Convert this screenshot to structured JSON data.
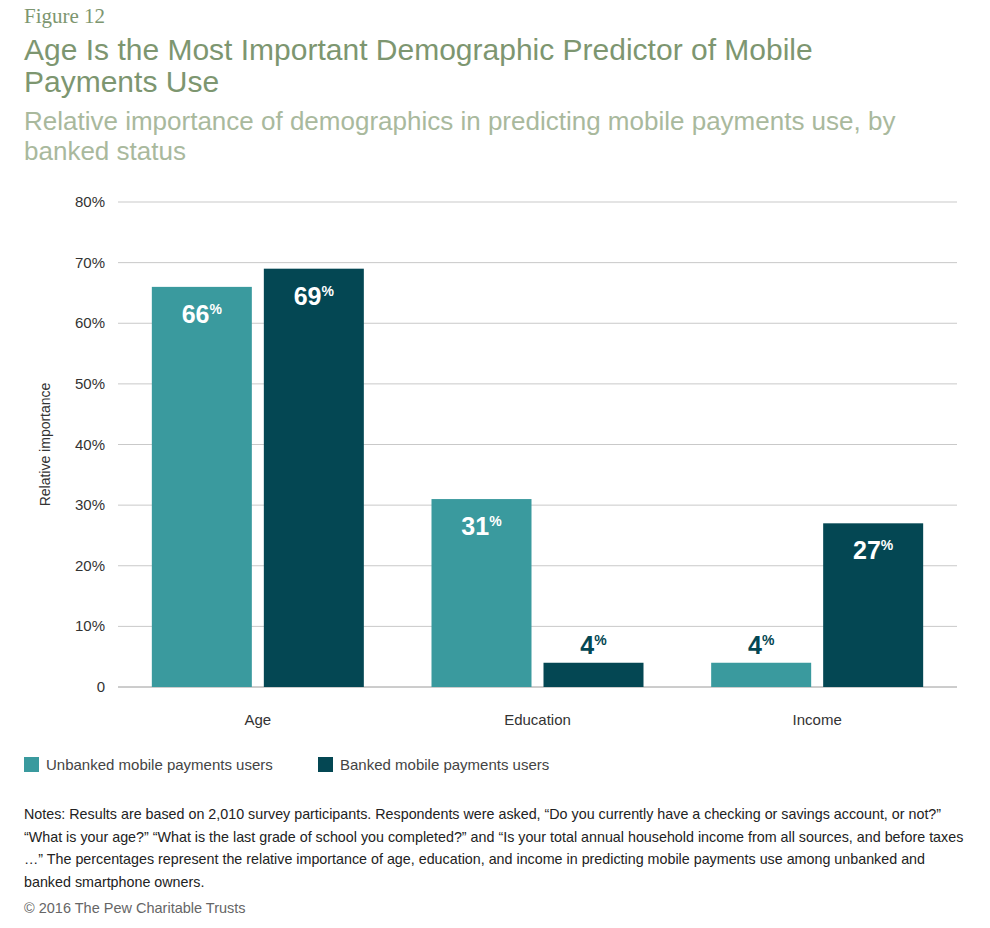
{
  "chart_data": {
    "type": "bar",
    "figure_label": "Figure 12",
    "title": "Age Is the Most Important Demographic Predictor of Mobile Payments Use",
    "subtitle": "Relative importance of demographics in predicting mobile payments use, by banked status",
    "y_label": "Relative importance",
    "categories": [
      "Age",
      "Education",
      "Income"
    ],
    "series": [
      {
        "name": "Unbanked mobile payments users",
        "color": "#3a9a9e",
        "values": [
          66,
          31,
          4
        ],
        "value_labels": [
          "66%",
          "31%",
          "4%"
        ]
      },
      {
        "name": "Banked mobile payments users",
        "color": "#044753",
        "values": [
          69,
          4,
          27
        ],
        "value_labels": [
          "69%",
          "4%",
          "27%"
        ]
      }
    ],
    "ylim": [
      0,
      80
    ],
    "yticks": [
      0,
      {
        "value": 10,
        "label": "10%"
      },
      {
        "value": 20,
        "label": "20%"
      },
      {
        "value": 30,
        "label": "30%"
      },
      {
        "value": 40,
        "label": "40%"
      },
      {
        "value": 50,
        "label": "50%"
      },
      {
        "value": 60,
        "label": "60%"
      },
      {
        "value": 70,
        "label": "70%"
      },
      {
        "value": 80,
        "label": "80%"
      }
    ],
    "grid": true,
    "legend": "bottom-left",
    "data_labels": true,
    "notes": "Notes: Results are based on 2,010 survey participants. Respondents were asked, “Do you currently have a checking or savings account, or not?” “What is your age?” “What is the last grade of school you completed?” and “Is your total annual household income from all sources, and before taxes …” The percentages represent the relative importance of age, education, and income in predicting mobile payments use among unbanked and banked smartphone owners.",
    "copyright": "© 2016 The Pew Charitable Trusts"
  }
}
